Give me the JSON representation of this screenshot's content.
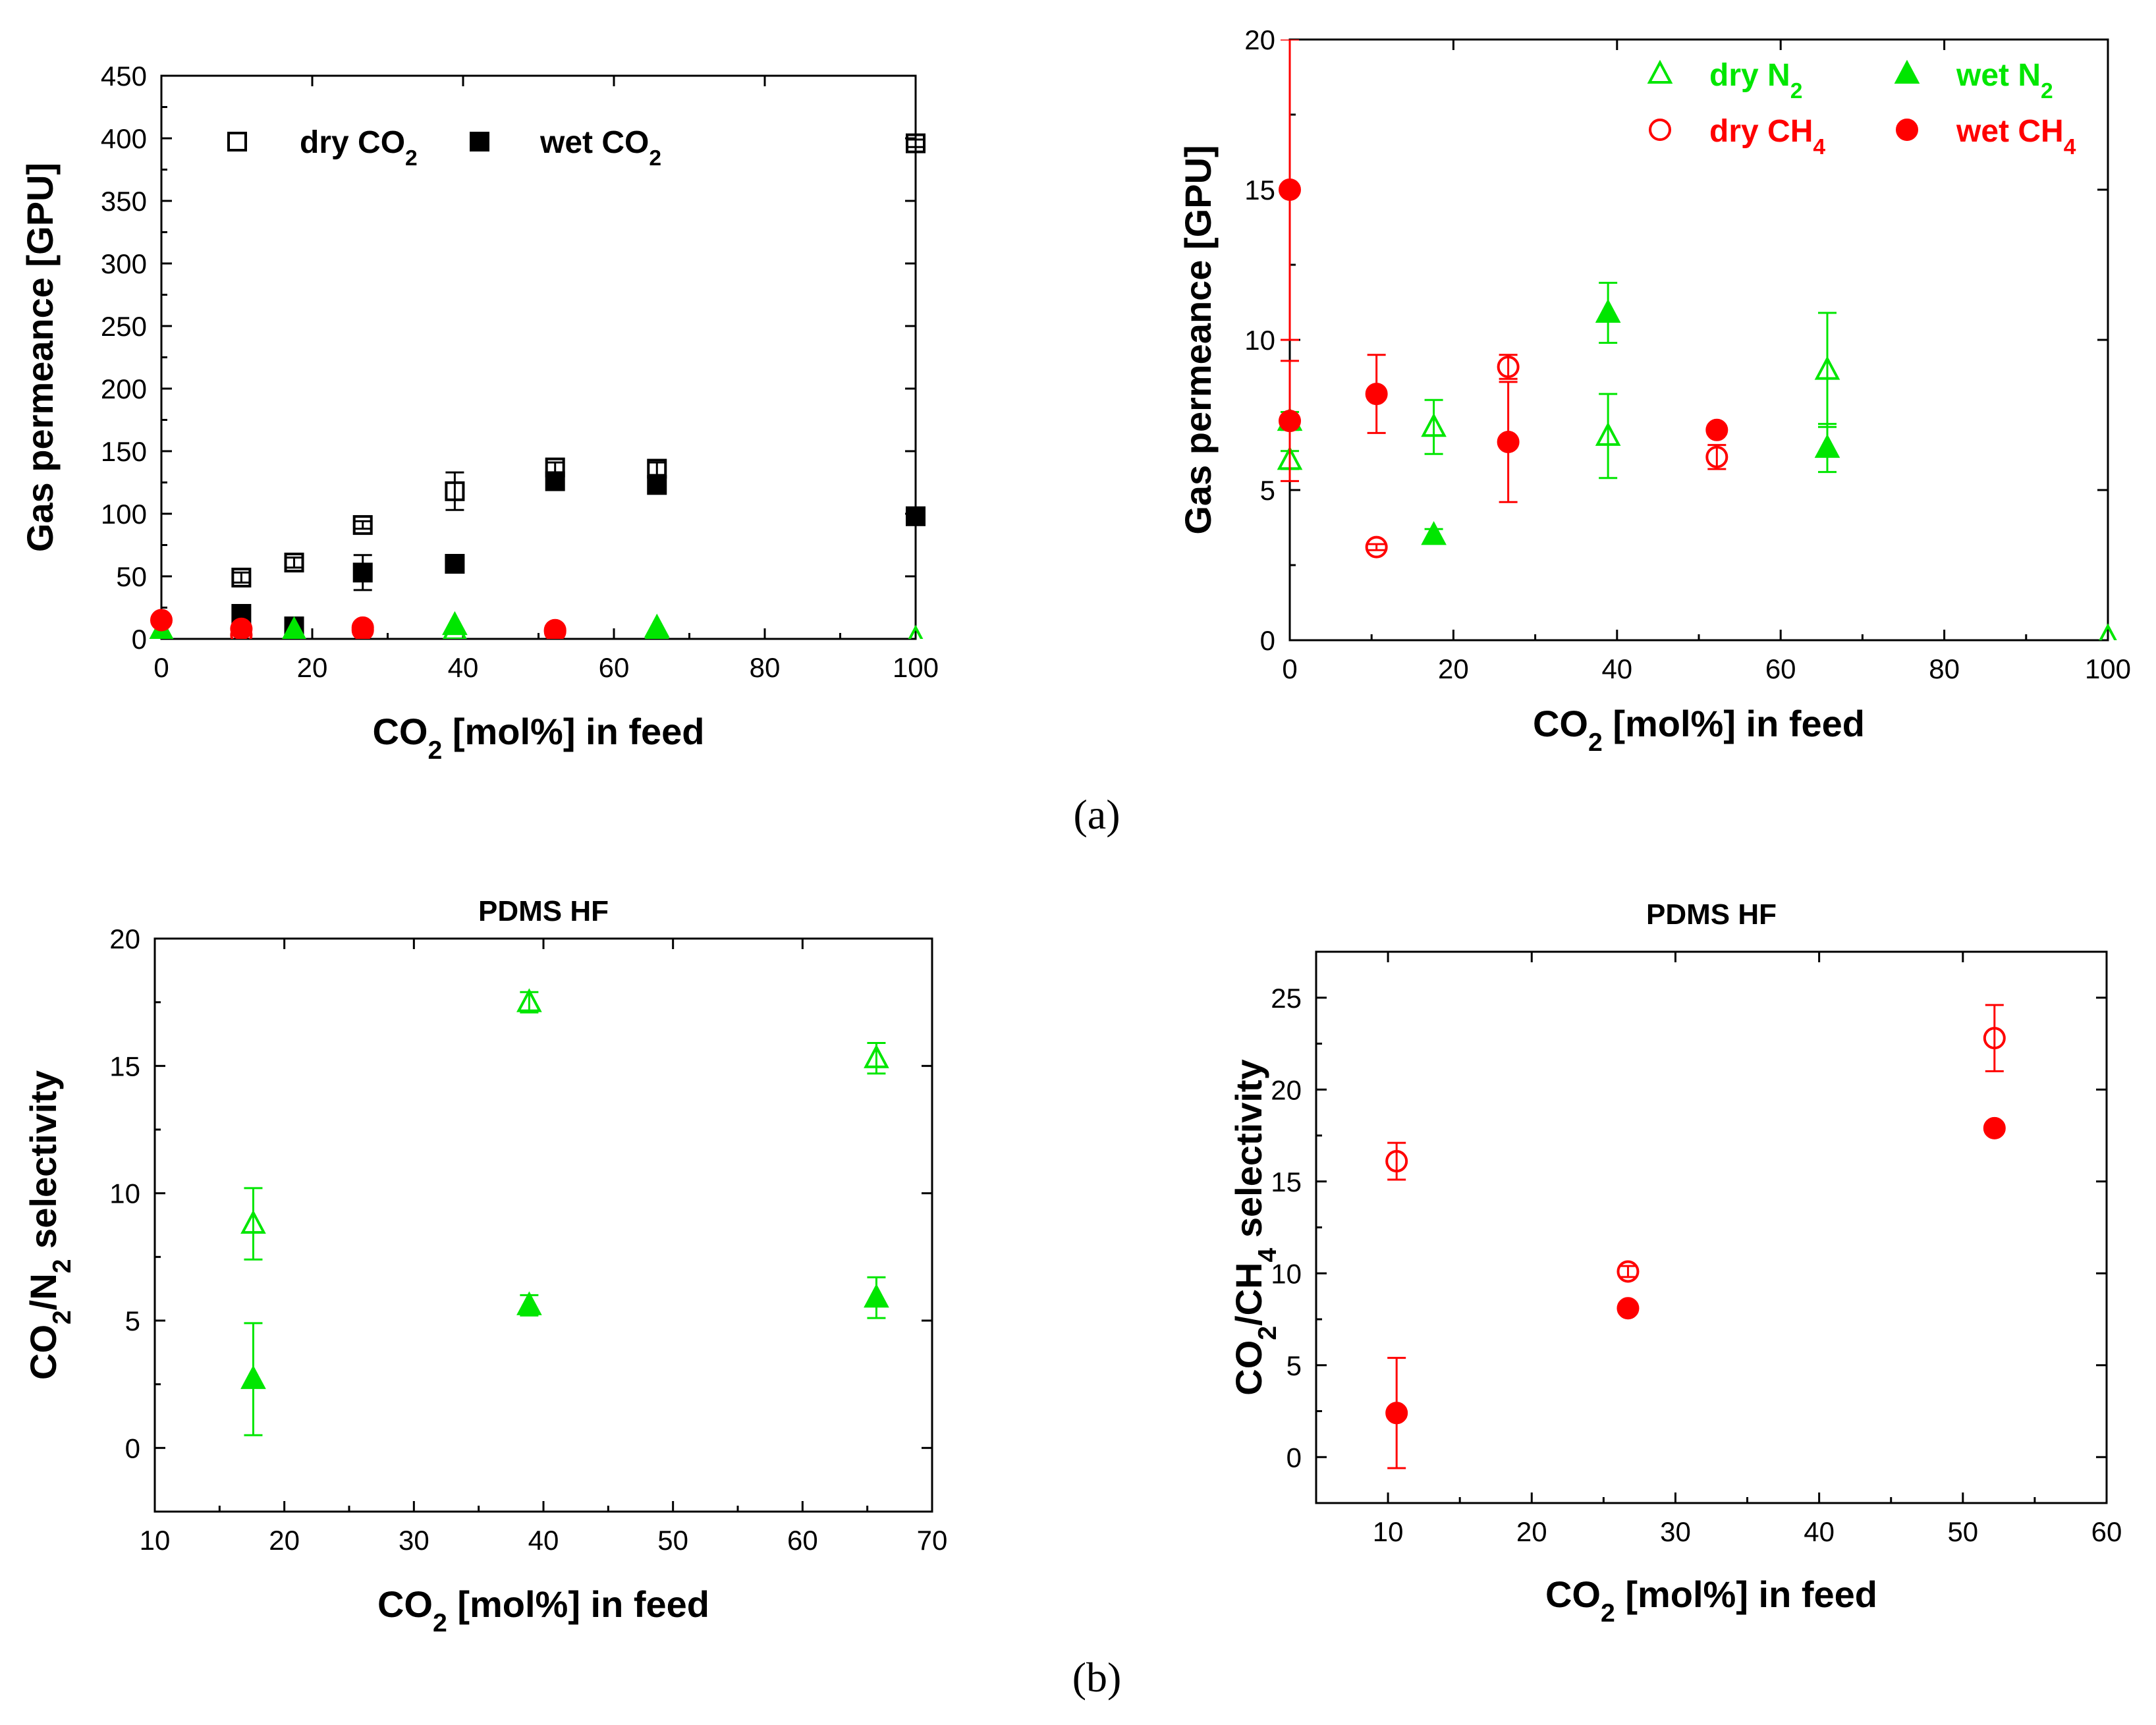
{
  "colors": {
    "green": "#00e600",
    "red": "#ff0000",
    "black": "#000000"
  },
  "panel_labels": [
    "(a)",
    "(b)"
  ],
  "chart_data": [
    {
      "type": "scatter",
      "xlabel_main": "CO",
      "xlabel_sub": "2",
      "xlabel_rest": " [mol%] in feed",
      "ylabel": "Gas permeance [GPU]",
      "xlim": [
        0,
        100
      ],
      "ylim": [
        0,
        450
      ],
      "xticks": [
        0,
        20,
        40,
        60,
        80,
        100
      ],
      "yticks": [
        0,
        50,
        100,
        150,
        200,
        250,
        300,
        350,
        400,
        450
      ],
      "legend_placement": "top-left",
      "series": [
        {
          "name": "dry CO",
          "name_sub": "2",
          "marker": "square",
          "filled": false,
          "color": "#000000",
          "points": [
            [
              10.6,
              49,
              4
            ],
            [
              17.6,
              61,
              4
            ],
            [
              26.7,
              91,
              3
            ],
            [
              38.9,
              118,
              15
            ],
            [
              52.2,
              137,
              4
            ],
            [
              65.7,
              136,
              5
            ],
            [
              100,
              396,
              3
            ]
          ]
        },
        {
          "name": "wet CO",
          "name_sub": "2",
          "marker": "square",
          "filled": true,
          "color": "#000000",
          "points": [
            [
              10.6,
              20,
              2
            ],
            [
              17.6,
              10,
              2
            ],
            [
              26.7,
              53,
              14
            ],
            [
              38.9,
              60,
              2
            ],
            [
              52.2,
              126,
              2
            ],
            [
              65.7,
              123,
              2
            ],
            [
              100,
              98,
              2
            ]
          ]
        },
        {
          "name": "",
          "marker": "triangle",
          "filled": false,
          "color": "#00e600",
          "points": [
            [
              0,
              6,
              0
            ],
            [
              17.6,
              7,
              0
            ],
            [
              38.9,
              7,
              0
            ],
            [
              65.7,
              9,
              0
            ],
            [
              100,
              0.1,
              0
            ]
          ]
        },
        {
          "name": "",
          "marker": "triangle",
          "filled": true,
          "color": "#00e600",
          "points": [
            [
              0,
              7,
              0
            ],
            [
              17.6,
              4,
              0
            ],
            [
              38.9,
              11,
              0
            ],
            [
              65.7,
              7,
              0
            ]
          ]
        },
        {
          "name": "",
          "marker": "circle",
          "filled": false,
          "color": "#ff0000",
          "points": [
            [
              10.6,
              3,
              0
            ],
            [
              26.7,
              9,
              0
            ],
            [
              52.2,
              6,
              0
            ]
          ]
        },
        {
          "name": "",
          "marker": "circle",
          "filled": true,
          "color": "#ff0000",
          "points": [
            [
              0,
              15,
              0
            ],
            [
              10.6,
              8,
              0
            ],
            [
              26.7,
              7,
              0
            ],
            [
              52.2,
              7,
              0
            ]
          ]
        }
      ]
    },
    {
      "type": "scatter",
      "xlabel_main": "CO",
      "xlabel_sub": "2",
      "xlabel_rest": " [mol%] in feed",
      "ylabel": "Gas permeance [GPU]",
      "xlim": [
        0,
        100
      ],
      "ylim": [
        0,
        20
      ],
      "xticks": [
        0,
        20,
        40,
        60,
        80,
        100
      ],
      "yticks": [
        0,
        5,
        10,
        15,
        20
      ],
      "legend_placement": "top-right",
      "series": [
        {
          "name": "dry N",
          "name_sub": "2",
          "marker": "triangle",
          "filled": false,
          "color": "#00e600",
          "points": [
            [
              0,
              6.0,
              0.3
            ],
            [
              17.6,
              7.1,
              0.9
            ],
            [
              38.9,
              6.8,
              1.4
            ],
            [
              65.7,
              9.0,
              1.9
            ],
            [
              100,
              0.1,
              0
            ]
          ]
        },
        {
          "name": "wet N",
          "name_sub": "2",
          "marker": "triangle",
          "filled": true,
          "color": "#00e600",
          "points": [
            [
              0,
              7.3,
              0.3
            ],
            [
              17.6,
              3.5,
              0.2
            ],
            [
              38.9,
              10.9,
              1.0
            ],
            [
              65.7,
              6.4,
              0.8
            ]
          ]
        },
        {
          "name": "dry CH",
          "name_sub": "4",
          "marker": "circle",
          "filled": false,
          "color": "#ff0000",
          "points": [
            [
              10.6,
              3.1,
              0.1
            ],
            [
              26.7,
              9.1,
              0.4
            ],
            [
              52.2,
              6.1,
              0.4
            ]
          ]
        },
        {
          "name": "wet CH",
          "name_sub": "4",
          "marker": "circle",
          "filled": true,
          "color": "#ff0000",
          "points": [
            [
              0,
              15.0,
              5.0
            ],
            [
              0,
              7.3,
              2.0
            ],
            [
              10.6,
              8.2,
              1.3
            ],
            [
              26.7,
              6.6,
              2.0
            ],
            [
              52.2,
              7.0,
              0.1
            ]
          ]
        }
      ]
    },
    {
      "type": "scatter",
      "title": "PDMS HF",
      "xlabel_main": "CO",
      "xlabel_sub": "2",
      "xlabel_rest": " [mol%] in feed",
      "ylabel_parts": [
        "CO",
        "2",
        "/N",
        "2",
        " selectivity"
      ],
      "xlim": [
        10,
        70
      ],
      "ylim": [
        -2.5,
        20
      ],
      "xticks": [
        10,
        20,
        30,
        40,
        50,
        60,
        70
      ],
      "yticks": [
        0,
        5,
        10,
        15,
        20
      ],
      "series": [
        {
          "name": "",
          "marker": "triangle",
          "filled": false,
          "color": "#00e600",
          "points": [
            [
              17.6,
              8.8,
              1.4
            ],
            [
              38.9,
              17.5,
              0.4
            ],
            [
              65.7,
              15.3,
              0.6
            ]
          ]
        },
        {
          "name": "",
          "marker": "triangle",
          "filled": true,
          "color": "#00e600",
          "points": [
            [
              17.6,
              2.7,
              2.2
            ],
            [
              38.9,
              5.6,
              0.4
            ],
            [
              65.7,
              5.9,
              0.8
            ]
          ]
        }
      ]
    },
    {
      "type": "scatter",
      "title": "PDMS HF",
      "xlabel_main": "CO",
      "xlabel_sub": "2",
      "xlabel_rest": " [mol%] in feed",
      "ylabel_parts": [
        "CO",
        "2",
        "/CH",
        "4",
        " selectivity"
      ],
      "xlim": [
        5,
        60
      ],
      "ylim": [
        -2.5,
        27.5
      ],
      "xticks": [
        10,
        20,
        30,
        40,
        50,
        60
      ],
      "yticks": [
        0,
        5,
        10,
        15,
        20,
        25
      ],
      "series": [
        {
          "name": "",
          "marker": "circle",
          "filled": false,
          "color": "#ff0000",
          "points": [
            [
              10.6,
              16.1,
              1.0
            ],
            [
              26.7,
              10.1,
              0.3
            ],
            [
              52.2,
              22.8,
              1.8
            ]
          ]
        },
        {
          "name": "",
          "marker": "circle",
          "filled": true,
          "color": "#ff0000",
          "points": [
            [
              10.6,
              2.4,
              3.0
            ],
            [
              26.7,
              8.1,
              0.3
            ],
            [
              52.2,
              17.9,
              0.1
            ]
          ]
        }
      ]
    }
  ]
}
